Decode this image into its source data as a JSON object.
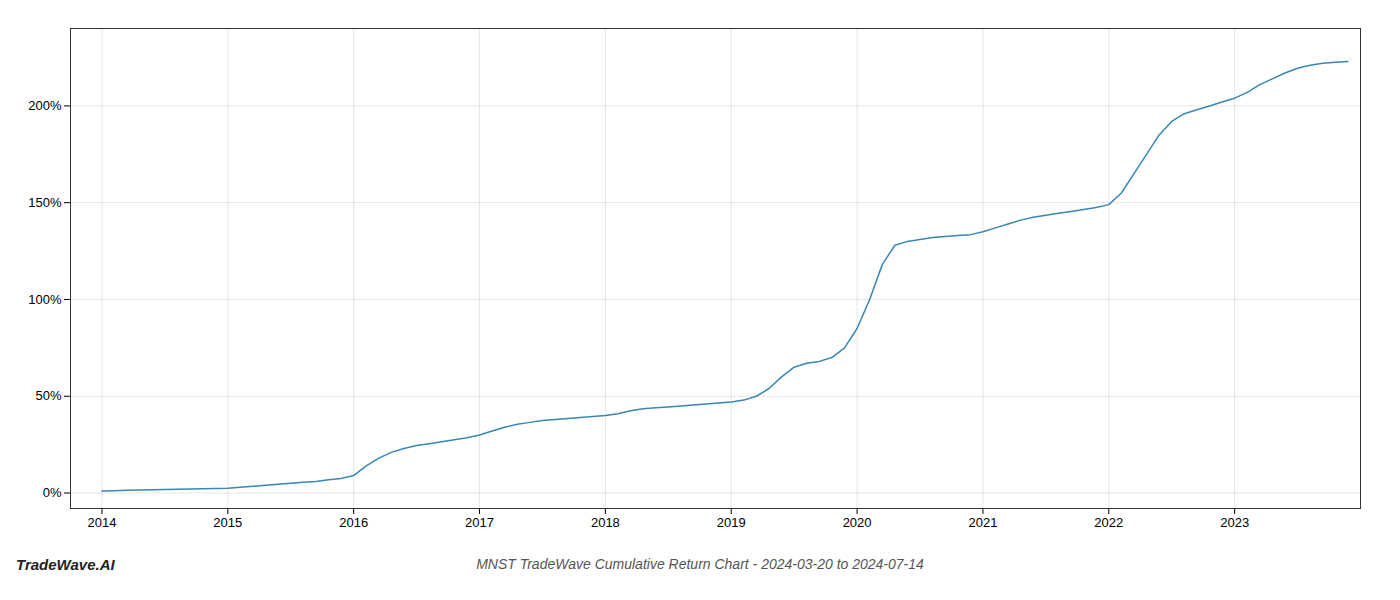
{
  "chart_data": {
    "type": "line",
    "title": "MNST TradeWave Cumulative Return Chart - 2024-03-20 to 2024-07-14",
    "annotations": [
      "TradeWave.AI"
    ],
    "color": "#3a86b4",
    "x": [
      2014.0,
      2014.1,
      2014.2,
      2014.3,
      2014.4,
      2014.5,
      2014.6,
      2014.7,
      2014.8,
      2014.9,
      2015.0,
      2015.1,
      2015.2,
      2015.3,
      2015.4,
      2015.5,
      2015.6,
      2015.7,
      2015.8,
      2015.9,
      2016.0,
      2016.1,
      2016.2,
      2016.3,
      2016.4,
      2016.5,
      2016.6,
      2016.7,
      2016.8,
      2016.9,
      2017.0,
      2017.1,
      2017.2,
      2017.3,
      2017.4,
      2017.5,
      2017.6,
      2017.7,
      2017.8,
      2017.9,
      2018.0,
      2018.1,
      2018.2,
      2018.3,
      2018.4,
      2018.5,
      2018.6,
      2018.7,
      2018.8,
      2018.9,
      2019.0,
      2019.1,
      2019.2,
      2019.3,
      2019.4,
      2019.5,
      2019.6,
      2019.7,
      2019.8,
      2019.9,
      2020.0,
      2020.1,
      2020.2,
      2020.3,
      2020.4,
      2020.5,
      2020.6,
      2020.7,
      2020.8,
      2020.9,
      2021.0,
      2021.1,
      2021.2,
      2021.3,
      2021.4,
      2021.5,
      2021.6,
      2021.7,
      2021.8,
      2021.9,
      2022.0,
      2022.1,
      2022.2,
      2022.3,
      2022.4,
      2022.5,
      2022.6,
      2022.7,
      2022.8,
      2022.9,
      2023.0,
      2023.1,
      2023.2,
      2023.3,
      2023.4,
      2023.5,
      2023.6,
      2023.7,
      2023.8,
      2023.9
    ],
    "values": [
      1.0,
      1.2,
      1.4,
      1.5,
      1.7,
      1.8,
      2.0,
      2.1,
      2.2,
      2.3,
      2.5,
      3.0,
      3.5,
      4.0,
      4.5,
      5.0,
      5.5,
      6.0,
      6.8,
      7.5,
      9.0,
      14.0,
      18.0,
      21.0,
      23.0,
      24.5,
      25.5,
      26.5,
      27.5,
      28.5,
      30.0,
      32.0,
      34.0,
      35.5,
      36.5,
      37.5,
      38.0,
      38.5,
      39.0,
      39.5,
      40.0,
      41.0,
      42.5,
      43.5,
      44.0,
      44.5,
      45.0,
      45.5,
      46.0,
      46.5,
      47.0,
      48.0,
      50.0,
      54.0,
      60.0,
      65.0,
      67.0,
      68.0,
      70.0,
      75.0,
      85.0,
      100.0,
      118.0,
      128.0,
      130.0,
      131.0,
      132.0,
      132.5,
      133.0,
      133.5,
      135.0,
      137.0,
      139.0,
      141.0,
      142.5,
      143.5,
      144.5,
      145.5,
      146.5,
      147.5,
      149.0,
      155.0,
      165.0,
      175.0,
      185.0,
      192.0,
      196.0,
      198.0,
      200.0,
      202.0,
      204.0,
      207.0,
      211.0,
      214.0,
      217.0,
      219.5,
      221.0,
      222.0,
      222.5,
      223.0
    ],
    "xlim": [
      2013.75,
      2024.0
    ],
    "ylim": [
      -8,
      240
    ],
    "xticks": [
      2014,
      2015,
      2016,
      2017,
      2018,
      2019,
      2020,
      2021,
      2022,
      2023
    ],
    "yticks": [
      {
        "value": 0,
        "label": "0%"
      },
      {
        "value": 50,
        "label": "50%"
      },
      {
        "value": 100,
        "label": "100%"
      },
      {
        "value": 150,
        "label": "150%"
      },
      {
        "value": 200,
        "label": "200%"
      }
    ],
    "grid": true
  }
}
